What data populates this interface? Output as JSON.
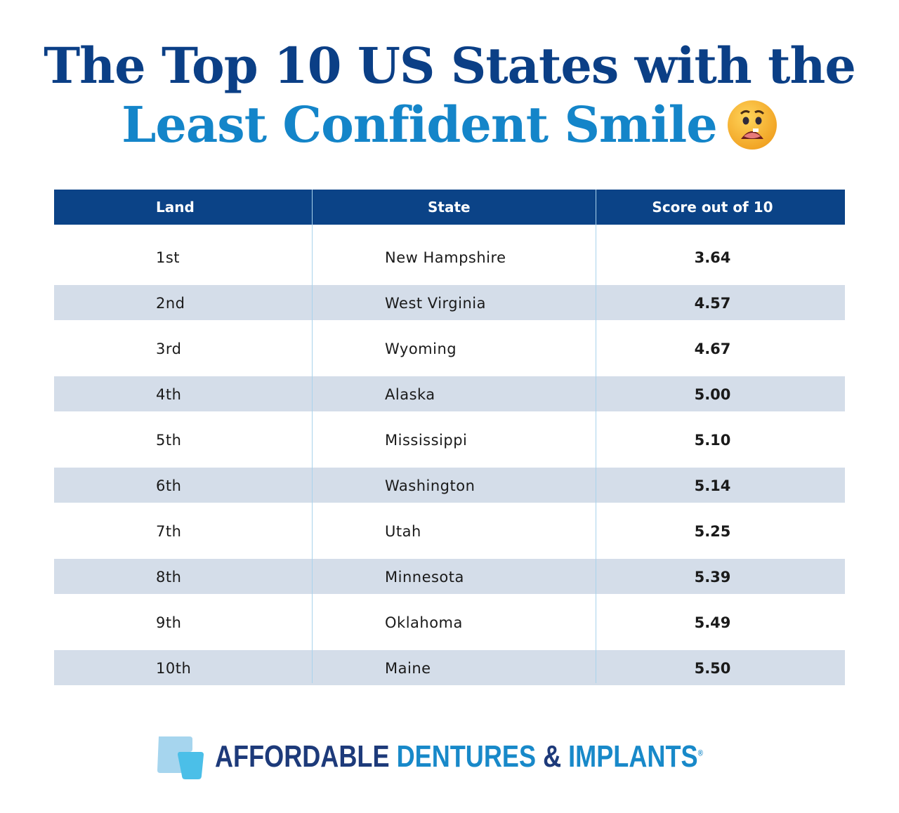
{
  "title": {
    "line1": "The Top 10 US States with the",
    "line2": "Least Confident Smile",
    "emoji": "anguished-face-with-missing-tooth"
  },
  "chart_data": {
    "type": "table",
    "columns": [
      "Land",
      "State",
      "Score out of 10"
    ],
    "rows": [
      [
        "1st",
        "New Hampshire",
        "3.64"
      ],
      [
        "2nd",
        "West Virginia",
        "4.57"
      ],
      [
        "3rd",
        "Wyoming",
        "4.67"
      ],
      [
        "4th",
        "Alaska",
        "5.00"
      ],
      [
        "5th",
        "Mississippi",
        "5.10"
      ],
      [
        "6th",
        "Washington",
        "5.14"
      ],
      [
        "7th",
        "Utah",
        "5.25"
      ],
      [
        "8th",
        "Minnesota",
        "5.39"
      ],
      [
        "9th",
        "Oklahoma",
        "5.49"
      ],
      [
        "10th",
        "Maine",
        "5.50"
      ]
    ]
  },
  "logo": {
    "part1": "AFFORDABLE",
    "part2": "DENTURES",
    "amp": "&",
    "part3": "IMPLANTS",
    "reg": "®"
  },
  "colors": {
    "header": "#0b4387",
    "title_dark": "#0b3f86",
    "title_light": "#1485c9",
    "stripe": "#d4dde9"
  }
}
